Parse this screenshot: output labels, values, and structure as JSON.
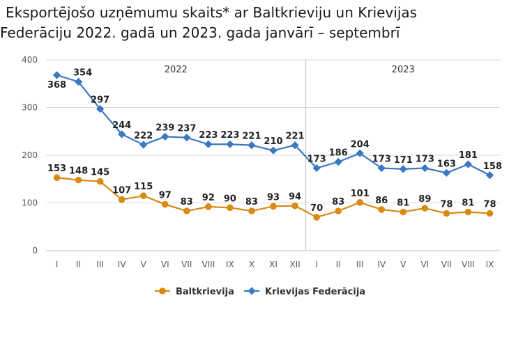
{
  "title_line1": "Eksportējošo uzņēmumu skaits* ar Baltkrieviju un Krievijas",
  "title_line2": "Federāciju 2022. gadā un 2023. gada janvārī – septembrī",
  "chart_data": {
    "type": "line",
    "title": "Eksportējošo uzņēmumu skaits* ar Baltkrieviju un Krievijas Federāciju 2022. gadā un 2023. gada janvārī – septembrī",
    "xlabel": "",
    "ylabel": "",
    "ylim": [
      0,
      400
    ],
    "yticks": [
      0,
      100,
      200,
      300,
      400
    ],
    "grid": true,
    "legend_position": "bottom",
    "year_groups": [
      {
        "label": "2022",
        "count": 12
      },
      {
        "label": "2023",
        "count": 9
      }
    ],
    "categories": [
      "I",
      "II",
      "III",
      "IV",
      "V",
      "VI",
      "VII",
      "VIII",
      "IX",
      "X",
      "XI",
      "XII",
      "I",
      "II",
      "III",
      "IV",
      "V",
      "VI",
      "VII",
      "VIII",
      "IX"
    ],
    "series": [
      {
        "name": "Baltkrievija",
        "color": "#d98a12",
        "values": [
          153,
          148,
          145,
          107,
          115,
          97,
          83,
          92,
          90,
          83,
          93,
          94,
          70,
          83,
          101,
          86,
          81,
          89,
          78,
          81,
          78
        ]
      },
      {
        "name": "Krievijas Federācija",
        "color": "#3a78c4",
        "values": [
          368,
          354,
          297,
          244,
          222,
          239,
          237,
          223,
          223,
          221,
          210,
          221,
          173,
          186,
          204,
          173,
          171,
          173,
          163,
          181,
          158
        ]
      }
    ]
  }
}
